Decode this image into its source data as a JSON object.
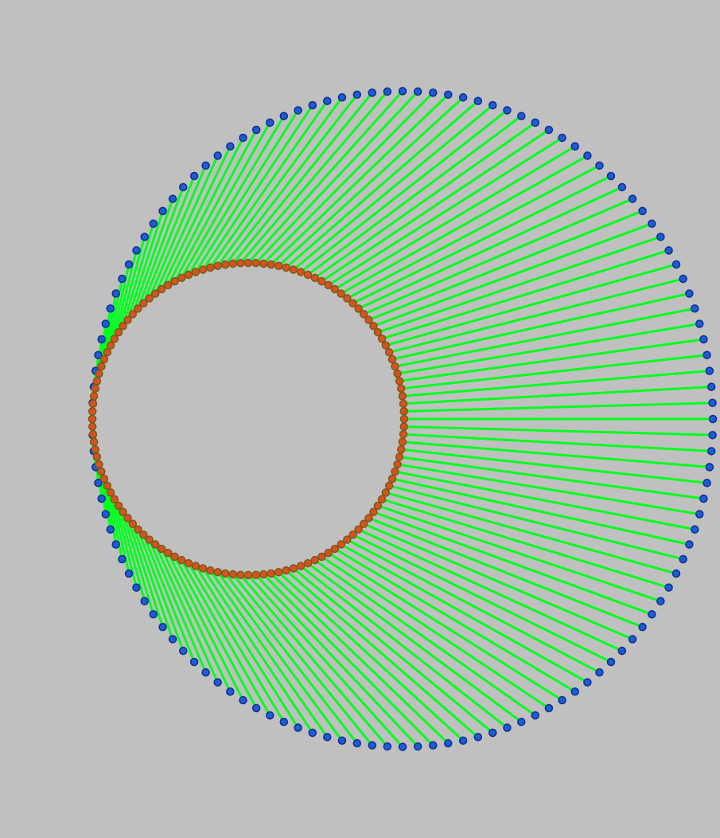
{
  "diagram": {
    "type": "cardioid-pedal-construction",
    "curve": "cardioid",
    "point_count": 128,
    "colors": {
      "background": "#c0c0c0",
      "rays": "#00ff1e",
      "base_circle_points": "#d7521f",
      "base_circle_point_outline": "#7a5a18",
      "cardioid_points": "#1f5bd6",
      "cardioid_point_outline": "#0b2f8a"
    }
  }
}
